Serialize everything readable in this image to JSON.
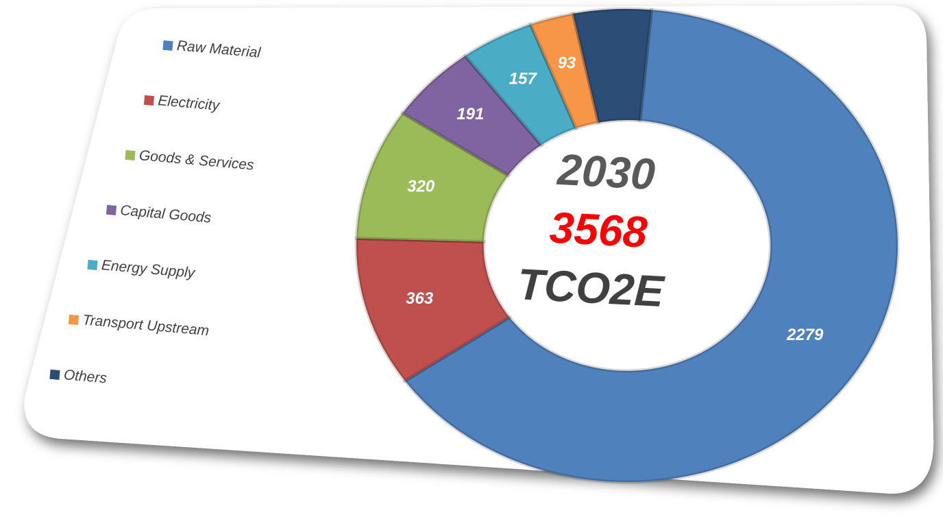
{
  "chart_data": {
    "type": "donut",
    "categories": [
      "Raw Material",
      "Electricity",
      "Goods & Services",
      "Capital Goods",
      "Energy Supply",
      "Transport Upstream",
      "Others"
    ],
    "values": [
      2279,
      363,
      320,
      191,
      157,
      93,
      165
    ],
    "value_labels": [
      "2279",
      "363",
      "320",
      "191",
      "157",
      "93",
      null
    ],
    "colors": [
      "#4f81bd",
      "#c0504d",
      "#9bbb59",
      "#8064a2",
      "#4bacc6",
      "#f79646",
      "#2c4d75"
    ],
    "center_labels": [
      "2030",
      "3568",
      "TCO2E"
    ],
    "legend": "left"
  }
}
